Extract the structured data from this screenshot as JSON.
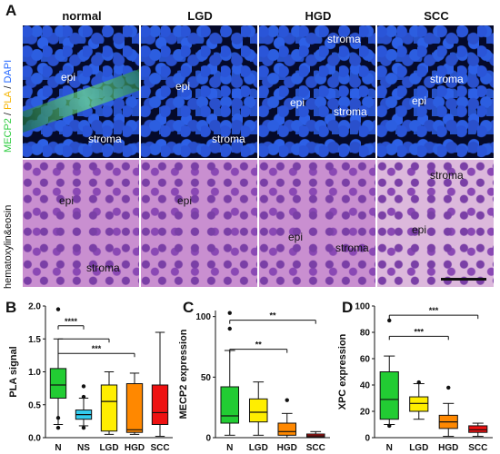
{
  "panel_a": {
    "letter": "A",
    "columns": [
      "normal",
      "LGD",
      "HGD",
      "SCC"
    ],
    "fluorescence_label": {
      "mecp2": "MECP2",
      "sep1": "/ ",
      "pla": "PLA",
      "sep2": "/ ",
      "dapi": "DAPI"
    },
    "he_label": "hematoxylin&eosin",
    "fluorescence_tiles": [
      [
        "epi",
        "stroma"
      ],
      [
        "epi",
        "stroma"
      ],
      [
        "stroma",
        "epi",
        "stroma"
      ],
      [
        "stroma",
        "epi"
      ]
    ],
    "he_tiles": [
      [
        "epi",
        "stroma"
      ],
      [
        "epi"
      ],
      [
        "epi",
        "stroma"
      ],
      [
        "stroma",
        "epi"
      ]
    ],
    "colors": {
      "mecp2": "#2ecc40",
      "pla": "#f5b400",
      "dapi": "#1e64ff"
    }
  },
  "chart_data": [
    {
      "letter": "B",
      "type": "box",
      "ylabel": "PLA signal",
      "ylim": [
        0,
        2.0
      ],
      "yticks": [
        "0.0",
        "0.5",
        "1.0",
        "1.5",
        "2.0"
      ],
      "categories": [
        "N",
        "NS",
        "LGD",
        "HGD",
        "SCC"
      ],
      "colors": [
        "#22cc33",
        "#33ccee",
        "#ffee00",
        "#ff8800",
        "#ee1111"
      ],
      "boxes": [
        {
          "min": 0.2,
          "q1": 0.6,
          "median": 0.8,
          "q3": 1.05,
          "max": 1.5
        },
        {
          "min": 0.18,
          "q1": 0.28,
          "median": 0.35,
          "q3": 0.42,
          "max": 0.6
        },
        {
          "min": 0.05,
          "q1": 0.1,
          "median": 0.55,
          "q3": 0.8,
          "max": 1.0
        },
        {
          "min": 0.05,
          "q1": 0.08,
          "median": 0.12,
          "q3": 0.82,
          "max": 0.98
        },
        {
          "min": 0.02,
          "q1": 0.2,
          "median": 0.38,
          "q3": 0.8,
          "max": 1.6
        }
      ],
      "outliers": [
        [
          0,
          1.95
        ],
        [
          0,
          0.3
        ],
        [
          0,
          0.15
        ],
        [
          1,
          0.78
        ],
        [
          1,
          0.62
        ],
        [
          1,
          0.15
        ]
      ],
      "significance": [
        {
          "from": 0,
          "to": 1,
          "label": "****",
          "y": 1.7
        },
        {
          "from": 0,
          "to": 2,
          "label": "",
          "y": 1.5
        },
        {
          "from": 0,
          "to": 3,
          "label": "***",
          "y": 1.28
        }
      ]
    },
    {
      "letter": "C",
      "type": "box",
      "ylabel": "MECP2 expression",
      "ylim": [
        0,
        105
      ],
      "yticks": [
        "0",
        "50",
        "100"
      ],
      "categories": [
        "N",
        "LGD",
        "HGD",
        "SCC"
      ],
      "colors": [
        "#22cc33",
        "#ffee00",
        "#ff8800",
        "#ee1111"
      ],
      "boxes": [
        {
          "min": 2,
          "q1": 12,
          "median": 18,
          "q3": 42,
          "max": 72
        },
        {
          "min": 2,
          "q1": 13,
          "median": 21,
          "q3": 32,
          "max": 46
        },
        {
          "min": 0,
          "q1": 2,
          "median": 5,
          "q3": 12,
          "max": 20
        },
        {
          "min": 0,
          "q1": 0.5,
          "median": 1.5,
          "q3": 3,
          "max": 5
        }
      ],
      "outliers": [
        [
          0,
          103
        ],
        [
          0,
          90
        ],
        [
          2,
          31
        ]
      ],
      "significance": [
        {
          "from": 0,
          "to": 3,
          "label": "**",
          "y": 97
        },
        {
          "from": 0,
          "to": 2,
          "label": "**",
          "y": 73
        }
      ]
    },
    {
      "letter": "D",
      "type": "box",
      "ylabel": "XPC expression",
      "ylim": [
        0,
        100
      ],
      "yticks": [
        "0",
        "20",
        "40",
        "60",
        "80",
        "100"
      ],
      "categories": [
        "N",
        "LGD",
        "HGD",
        "SCC"
      ],
      "colors": [
        "#22cc33",
        "#ffee00",
        "#ff8800",
        "#ee1111"
      ],
      "boxes": [
        {
          "min": 10,
          "q1": 14,
          "median": 29,
          "q3": 50,
          "max": 62
        },
        {
          "min": 14,
          "q1": 20,
          "median": 26,
          "q3": 31,
          "max": 41
        },
        {
          "min": 1,
          "q1": 7,
          "median": 12,
          "q3": 17,
          "max": 26
        },
        {
          "min": 1,
          "q1": 4,
          "median": 6,
          "q3": 9,
          "max": 11
        }
      ],
      "outliers": [
        [
          0,
          89
        ],
        [
          0,
          9
        ],
        [
          1,
          42
        ],
        [
          2,
          38
        ]
      ],
      "significance": [
        {
          "from": 0,
          "to": 3,
          "label": "***",
          "y": 93
        },
        {
          "from": 0,
          "to": 2,
          "label": "***",
          "y": 77
        }
      ]
    }
  ]
}
